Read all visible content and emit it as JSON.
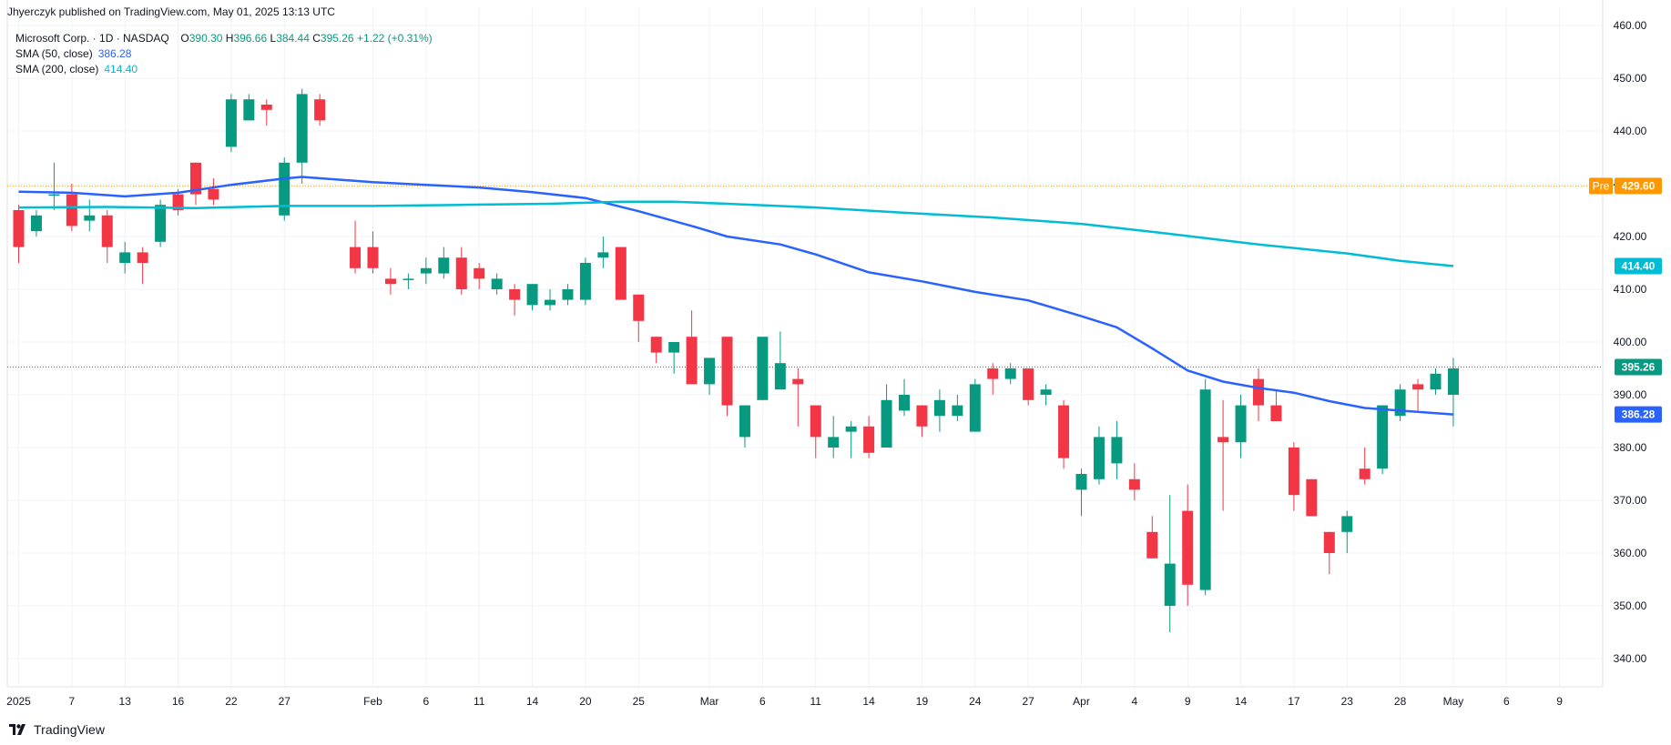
{
  "publisher_line": "Jhyerczyk published on TradingView.com, May 01, 2025 13:13 UTC",
  "legend": {
    "symbol": "Microsoft Corp. · 1D · NASDAQ",
    "open_label": "O",
    "open_value": "390.30",
    "high_label": "H",
    "high_value": "396.66",
    "low_label": "L",
    "low_value": "384.44",
    "close_label": "C",
    "close_value": "395.26",
    "change": "+1.22 (+0.31%)",
    "sma50_label": "SMA (50, close)",
    "sma50_value": "386.28",
    "sma200_label": "SMA (200, close)",
    "sma200_value": "414.40"
  },
  "brand": {
    "name": "TradingView",
    "icon": "tradingview-logo-icon"
  },
  "colors": {
    "up": "#089981",
    "down": "#f23645",
    "sma50": "#2962ff",
    "sma200": "#00bcd4",
    "premarket": "#ff9800",
    "last_price": "#089981",
    "grid": "#f0f3fa",
    "axis_text": "#131722"
  },
  "chart_data": {
    "type": "candlestick",
    "symbol": "Microsoft Corp.",
    "interval": "1D",
    "exchange": "NASDAQ",
    "ylim": [
      335,
      462
    ],
    "y_ticks": [
      340,
      350,
      360,
      370,
      380,
      390,
      400,
      410,
      420,
      430,
      440,
      450,
      460
    ],
    "x_tick_labels": [
      "2025",
      "7",
      "13",
      "16",
      "22",
      "27",
      "Feb",
      "6",
      "11",
      "14",
      "20",
      "25",
      "Mar",
      "6",
      "11",
      "14",
      "19",
      "24",
      "27",
      "Apr",
      "4",
      "9",
      "14",
      "17",
      "23",
      "28",
      "May",
      "6",
      "9"
    ],
    "x_tick_indices": [
      0,
      3,
      6,
      9,
      12,
      15,
      20,
      23,
      26,
      29,
      32,
      35,
      39,
      42,
      45,
      48,
      51,
      54,
      57,
      60,
      63,
      66,
      69,
      72,
      75,
      78,
      81,
      84,
      87
    ],
    "candles": [
      {
        "i": 0,
        "o": 425,
        "h": 426,
        "l": 415,
        "c": 418
      },
      {
        "i": 1,
        "o": 421,
        "h": 425,
        "l": 420,
        "c": 424
      },
      {
        "i": 2,
        "o": 428,
        "h": 434,
        "l": 425,
        "c": 428
      },
      {
        "i": 3,
        "o": 428,
        "h": 430,
        "l": 421,
        "c": 422
      },
      {
        "i": 4,
        "o": 423,
        "h": 427,
        "l": 421,
        "c": 424
      },
      {
        "i": 5,
        "o": 424,
        "h": 425,
        "l": 415,
        "c": 418
      },
      {
        "i": 6,
        "o": 415,
        "h": 419,
        "l": 413,
        "c": 417
      },
      {
        "i": 7,
        "o": 417,
        "h": 418,
        "l": 411,
        "c": 415
      },
      {
        "i": 8,
        "o": 419,
        "h": 427,
        "l": 418,
        "c": 426
      },
      {
        "i": 9,
        "o": 428,
        "h": 429,
        "l": 424,
        "c": 425
      },
      {
        "i": 10,
        "o": 434,
        "h": 434,
        "l": 426,
        "c": 428
      },
      {
        "i": 11,
        "o": 429,
        "h": 431,
        "l": 426,
        "c": 427
      },
      {
        "i": 12,
        "o": 437,
        "h": 447,
        "l": 436,
        "c": 446
      },
      {
        "i": 13,
        "o": 442,
        "h": 447,
        "l": 442,
        "c": 446
      },
      {
        "i": 14,
        "o": 445,
        "h": 446,
        "l": 441,
        "c": 444
      },
      {
        "i": 15,
        "o": 424,
        "h": 435,
        "l": 423,
        "c": 434
      },
      {
        "i": 16,
        "o": 434,
        "h": 448,
        "l": 430,
        "c": 447
      },
      {
        "i": 17,
        "o": 446,
        "h": 447,
        "l": 441,
        "c": 442
      },
      {
        "i": 19,
        "o": 418,
        "h": 423,
        "l": 413,
        "c": 414
      },
      {
        "i": 20,
        "o": 418,
        "h": 421,
        "l": 413,
        "c": 414
      },
      {
        "i": 21,
        "o": 412,
        "h": 414,
        "l": 409,
        "c": 411
      },
      {
        "i": 22,
        "o": 412,
        "h": 413,
        "l": 410,
        "c": 412
      },
      {
        "i": 23,
        "o": 413,
        "h": 416,
        "l": 411,
        "c": 414
      },
      {
        "i": 24,
        "o": 413,
        "h": 418,
        "l": 412,
        "c": 416
      },
      {
        "i": 25,
        "o": 416,
        "h": 418,
        "l": 409,
        "c": 410
      },
      {
        "i": 26,
        "o": 414,
        "h": 415,
        "l": 410,
        "c": 412
      },
      {
        "i": 27,
        "o": 410,
        "h": 413,
        "l": 409,
        "c": 412
      },
      {
        "i": 28,
        "o": 410,
        "h": 411,
        "l": 405,
        "c": 408
      },
      {
        "i": 29,
        "o": 407,
        "h": 411,
        "l": 406,
        "c": 411
      },
      {
        "i": 30,
        "o": 407,
        "h": 410,
        "l": 406,
        "c": 408
      },
      {
        "i": 31,
        "o": 408,
        "h": 411,
        "l": 407,
        "c": 410
      },
      {
        "i": 32,
        "o": 408,
        "h": 416,
        "l": 407,
        "c": 415
      },
      {
        "i": 33,
        "o": 416,
        "h": 420,
        "l": 414,
        "c": 417
      },
      {
        "i": 34,
        "o": 418,
        "h": 418,
        "l": 408,
        "c": 408
      },
      {
        "i": 35,
        "o": 409,
        "h": 409,
        "l": 400,
        "c": 404
      },
      {
        "i": 36,
        "o": 401,
        "h": 401,
        "l": 396,
        "c": 398
      },
      {
        "i": 37,
        "o": 398,
        "h": 400,
        "l": 394,
        "c": 400
      },
      {
        "i": 38,
        "o": 401,
        "h": 406,
        "l": 392,
        "c": 392
      },
      {
        "i": 39,
        "o": 392,
        "h": 396,
        "l": 390,
        "c": 397
      },
      {
        "i": 40,
        "o": 401,
        "h": 401,
        "l": 386,
        "c": 388
      },
      {
        "i": 41,
        "o": 382,
        "h": 388,
        "l": 380,
        "c": 388
      },
      {
        "i": 42,
        "o": 389,
        "h": 401,
        "l": 389,
        "c": 401
      },
      {
        "i": 43,
        "o": 391,
        "h": 402,
        "l": 392,
        "c": 396
      },
      {
        "i": 44,
        "o": 393,
        "h": 395,
        "l": 384,
        "c": 392
      },
      {
        "i": 45,
        "o": 388,
        "h": 388,
        "l": 378,
        "c": 382
      },
      {
        "i": 46,
        "o": 380,
        "h": 386,
        "l": 378,
        "c": 382
      },
      {
        "i": 47,
        "o": 383,
        "h": 385,
        "l": 378,
        "c": 384
      },
      {
        "i": 48,
        "o": 384,
        "h": 386,
        "l": 378,
        "c": 379
      },
      {
        "i": 49,
        "o": 380,
        "h": 392,
        "l": 380,
        "c": 389
      },
      {
        "i": 50,
        "o": 387,
        "h": 393,
        "l": 386,
        "c": 390
      },
      {
        "i": 51,
        "o": 388,
        "h": 388,
        "l": 382,
        "c": 384
      },
      {
        "i": 52,
        "o": 386,
        "h": 391,
        "l": 383,
        "c": 389
      },
      {
        "i": 53,
        "o": 386,
        "h": 390,
        "l": 385,
        "c": 388
      },
      {
        "i": 54,
        "o": 383,
        "h": 393,
        "l": 383,
        "c": 392
      },
      {
        "i": 55,
        "o": 395,
        "h": 396,
        "l": 390,
        "c": 393
      },
      {
        "i": 56,
        "o": 393,
        "h": 396,
        "l": 392,
        "c": 395
      },
      {
        "i": 57,
        "o": 395,
        "h": 395,
        "l": 388,
        "c": 389
      },
      {
        "i": 58,
        "o": 390,
        "h": 392,
        "l": 388,
        "c": 391
      },
      {
        "i": 59,
        "o": 388,
        "h": 389,
        "l": 376,
        "c": 378
      },
      {
        "i": 60,
        "o": 372,
        "h": 376,
        "l": 367,
        "c": 375
      },
      {
        "i": 61,
        "o": 374,
        "h": 384,
        "l": 373,
        "c": 382
      },
      {
        "i": 62,
        "o": 377,
        "h": 385,
        "l": 374,
        "c": 382
      },
      {
        "i": 63,
        "o": 374,
        "h": 377,
        "l": 370,
        "c": 372
      },
      {
        "i": 64,
        "o": 364,
        "h": 367,
        "l": 359,
        "c": 359
      },
      {
        "i": 65,
        "o": 350,
        "h": 371,
        "l": 345,
        "c": 358
      },
      {
        "i": 66,
        "o": 368,
        "h": 373,
        "l": 350,
        "c": 354
      },
      {
        "i": 67,
        "o": 353,
        "h": 393,
        "l": 352,
        "c": 391
      },
      {
        "i": 68,
        "o": 382,
        "h": 389,
        "l": 368,
        "c": 381
      },
      {
        "i": 69,
        "o": 381,
        "h": 390,
        "l": 378,
        "c": 388
      },
      {
        "i": 70,
        "o": 393,
        "h": 395,
        "l": 385,
        "c": 388
      },
      {
        "i": 71,
        "o": 388,
        "h": 391,
        "l": 385,
        "c": 385
      },
      {
        "i": 72,
        "o": 380,
        "h": 381,
        "l": 368,
        "c": 371
      },
      {
        "i": 73,
        "o": 374,
        "h": 374,
        "l": 367,
        "c": 367
      },
      {
        "i": 74,
        "o": 364,
        "h": 364,
        "l": 356,
        "c": 360
      },
      {
        "i": 75,
        "o": 364,
        "h": 368,
        "l": 360,
        "c": 367
      },
      {
        "i": 76,
        "o": 376,
        "h": 380,
        "l": 373,
        "c": 374
      },
      {
        "i": 77,
        "o": 376,
        "h": 388,
        "l": 375,
        "c": 388
      },
      {
        "i": 78,
        "o": 386,
        "h": 392,
        "l": 385,
        "c": 391
      },
      {
        "i": 79,
        "o": 392,
        "h": 393,
        "l": 387,
        "c": 391
      },
      {
        "i": 80,
        "o": 391,
        "h": 395,
        "l": 390,
        "c": 394
      },
      {
        "i": 81,
        "o": 390,
        "h": 397,
        "l": 384,
        "c": 395
      }
    ],
    "series": [
      {
        "name": "SMA (50, close)",
        "color": "#2962ff",
        "points": [
          [
            0,
            428.5
          ],
          [
            3,
            428.3
          ],
          [
            6,
            427.6
          ],
          [
            9,
            428.3
          ],
          [
            12,
            429.8
          ],
          [
            15,
            431
          ],
          [
            16,
            431.3
          ],
          [
            20,
            430.3
          ],
          [
            23,
            429.8
          ],
          [
            26,
            429.3
          ],
          [
            29,
            428.4
          ],
          [
            32,
            427.3
          ],
          [
            35,
            424.8
          ],
          [
            38,
            422
          ],
          [
            40,
            420
          ],
          [
            43,
            418.5
          ],
          [
            45,
            416.6
          ],
          [
            48,
            413.2
          ],
          [
            51,
            411.5
          ],
          [
            54,
            409.5
          ],
          [
            57,
            407.9
          ],
          [
            60,
            404.9
          ],
          [
            62,
            402.8
          ],
          [
            64,
            398.8
          ],
          [
            66,
            394.6
          ],
          [
            68,
            392.5
          ],
          [
            70,
            391.3
          ],
          [
            72,
            390.4
          ],
          [
            74,
            388.8
          ],
          [
            76,
            387.5
          ],
          [
            78,
            387
          ],
          [
            81,
            386.28
          ]
        ]
      },
      {
        "name": "SMA (200, close)",
        "color": "#00bcd4",
        "points": [
          [
            0,
            425.5
          ],
          [
            5,
            425.6
          ],
          [
            10,
            425.4
          ],
          [
            15,
            425.8
          ],
          [
            20,
            425.8
          ],
          [
            25,
            426
          ],
          [
            30,
            426.2
          ],
          [
            34,
            426.6
          ],
          [
            37,
            426.6
          ],
          [
            40,
            426.2
          ],
          [
            45,
            425.5
          ],
          [
            50,
            424.5
          ],
          [
            55,
            423.6
          ],
          [
            60,
            422.4
          ],
          [
            65,
            420.5
          ],
          [
            70,
            418.5
          ],
          [
            75,
            416.8
          ],
          [
            78,
            415.4
          ],
          [
            81,
            414.4
          ]
        ]
      }
    ],
    "price_labels": [
      {
        "name": "premarket",
        "prefix": "Pre",
        "value": 429.6,
        "text": "429.60",
        "color": "#ff9800",
        "line": "dotted"
      },
      {
        "name": "last-price",
        "value": 395.26,
        "text": "395.26",
        "color": "#089981",
        "line": "dotted"
      },
      {
        "name": "sma200",
        "value": 414.4,
        "text": "414.40",
        "color": "#00bcd4",
        "line": "none"
      },
      {
        "name": "sma50",
        "value": 386.28,
        "text": "386.28",
        "color": "#2962ff",
        "line": "none"
      }
    ],
    "grid": true
  }
}
